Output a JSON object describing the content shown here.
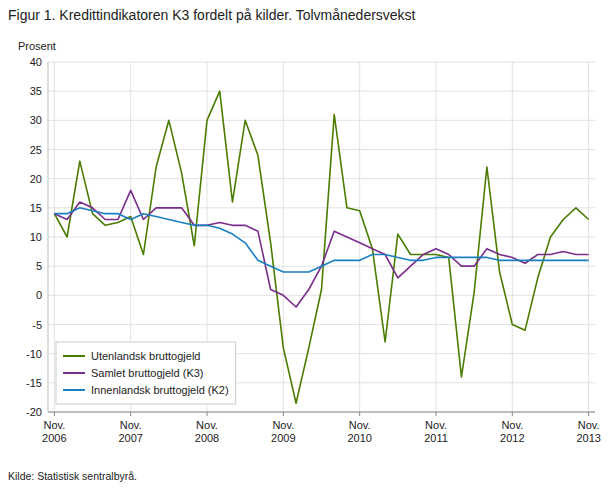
{
  "chart_data": {
    "type": "line",
    "title": "Figur 1. Kredittindikatoren K3 fordelt på kilder. Tolvmånedersvekst",
    "y_label": "Prosent",
    "source": "Kilde: Statistisk sentralbyrå.",
    "categories": [
      "Nov.\n2006",
      null,
      null,
      null,
      null,
      null,
      "Nov.\n2007",
      null,
      null,
      null,
      null,
      null,
      "Nov.\n2008",
      null,
      null,
      null,
      null,
      null,
      "Nov.\n2009",
      null,
      null,
      null,
      null,
      null,
      "Nov.\n2010",
      null,
      null,
      null,
      null,
      null,
      "Nov.\n2011",
      null,
      null,
      null,
      null,
      null,
      "Nov.\n2012",
      null,
      null,
      null,
      null,
      null,
      "Nov.\n2013"
    ],
    "series": [
      {
        "name": "Utenlandsk bruttogjeld",
        "color": "#4a7c00",
        "values": [
          14.0,
          10.0,
          23.0,
          14.0,
          12.0,
          12.5,
          13.5,
          7.0,
          22.0,
          30.0,
          21.0,
          8.5,
          30.0,
          35.0,
          16.0,
          30.0,
          24.0,
          9.0,
          -9.0,
          -18.5,
          -9.0,
          1.0,
          31.0,
          15.0,
          14.5,
          8.0,
          -8.0,
          10.5,
          7.0,
          7.0,
          7.0,
          6.5,
          -14.0,
          0.5,
          22.0,
          4.0,
          -5.0,
          -6.0,
          3.0,
          10.0,
          13.0,
          15.0,
          13.0
        ]
      },
      {
        "name": "Samlet bruttogjeld (K3)",
        "color": "#7b2d8b",
        "values": [
          14.0,
          13.0,
          16.0,
          15.0,
          13.0,
          13.0,
          18.0,
          13.0,
          15.0,
          15.0,
          15.0,
          12.0,
          12.0,
          12.5,
          12.0,
          12.0,
          11.0,
          1.0,
          0.0,
          -2.0,
          1.0,
          5.0,
          11.0,
          10.0,
          9.0,
          8.0,
          7.0,
          3.0,
          5.0,
          7.0,
          8.0,
          7.0,
          5.0,
          5.0,
          8.0,
          7.0,
          6.5,
          5.5,
          7.0,
          7.0,
          7.5,
          7.0,
          7.0
        ]
      },
      {
        "name": "Innenlandsk bruttogjeld (K2)",
        "color": "#1a7fc1",
        "values": [
          14.0,
          14.0,
          15.0,
          14.5,
          14.0,
          14.0,
          13.0,
          14.0,
          13.5,
          13.0,
          12.5,
          12.0,
          12.0,
          11.5,
          10.5,
          9.0,
          6.0,
          5.0,
          4.0,
          4.0,
          4.0,
          5.0,
          6.0,
          6.0,
          6.0,
          7.0,
          7.0,
          6.5,
          6.0,
          6.0,
          6.5,
          6.5,
          6.5,
          6.5,
          6.5,
          6.0,
          6.0,
          6.0,
          6.0,
          6.0,
          6.0,
          6.0,
          6.0
        ]
      }
    ],
    "ylim": [
      -20,
      40
    ],
    "yticks": [
      -20,
      -15,
      -10,
      -5,
      0,
      5,
      10,
      15,
      20,
      25,
      30,
      35,
      40
    ],
    "grid": true,
    "legend": "lower left"
  }
}
